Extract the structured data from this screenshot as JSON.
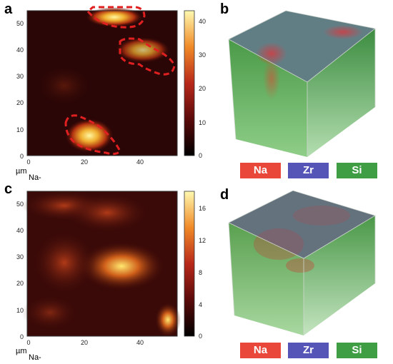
{
  "panels": {
    "a": {
      "letter": "a"
    },
    "b": {
      "letter": "b"
    },
    "c": {
      "letter": "c"
    },
    "d": {
      "letter": "d"
    }
  },
  "map_axes": {
    "y_ticks": [
      "0",
      "10",
      "20",
      "30",
      "40",
      "50"
    ],
    "x_ticks": [
      "0",
      "20",
      "40"
    ],
    "unit": "µm",
    "species": "Na-"
  },
  "colorbar_top": {
    "ticks": [
      "0",
      "10",
      "20",
      "30",
      "40"
    ],
    "max": 43
  },
  "colorbar_bottom": {
    "ticks": [
      "0",
      "4",
      "8",
      "12",
      "16"
    ],
    "max": 18
  },
  "legend": {
    "na": {
      "label": "Na",
      "color": "#e8473a"
    },
    "zr": {
      "label": "Zr",
      "color": "#5555b8"
    },
    "si": {
      "label": "Si",
      "color": "#3f9e44"
    }
  },
  "colors": {
    "map_background": "#2a0606",
    "highlight_dash": "#e02020",
    "cube_green": "#52b048"
  }
}
